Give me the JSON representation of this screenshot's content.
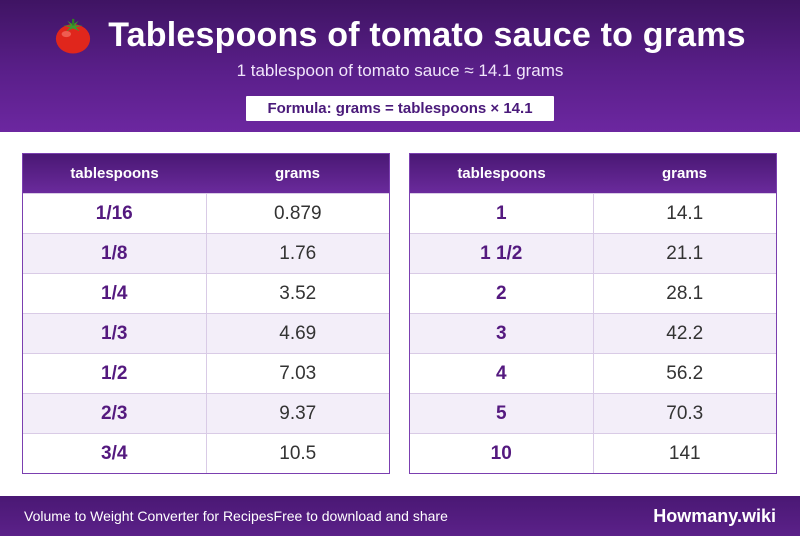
{
  "header": {
    "icon": "tomato-icon",
    "title": "Tablespoons of tomato sauce to grams",
    "subtitle": "1 tablespoon of tomato sauce ≈ 14.1 grams",
    "formula": "Formula: grams = tablespoons × 14.1"
  },
  "tables": [
    {
      "headers": [
        "tablespoons",
        "grams"
      ],
      "rows": [
        [
          "1/16",
          "0.879"
        ],
        [
          "1/8",
          "1.76"
        ],
        [
          "1/4",
          "3.52"
        ],
        [
          "1/3",
          "4.69"
        ],
        [
          "1/2",
          "7.03"
        ],
        [
          "2/3",
          "9.37"
        ],
        [
          "3/4",
          "10.5"
        ]
      ]
    },
    {
      "headers": [
        "tablespoons",
        "grams"
      ],
      "rows": [
        [
          "1",
          "14.1"
        ],
        [
          "1 1/2",
          "21.1"
        ],
        [
          "2",
          "28.1"
        ],
        [
          "3",
          "42.2"
        ],
        [
          "4",
          "56.2"
        ],
        [
          "5",
          "70.3"
        ],
        [
          "10",
          "141"
        ]
      ]
    }
  ],
  "footer": {
    "left_text_1": "Volume to Weight Converter for Recipes",
    "left_text_2": "Free to download and share",
    "brand": "Howmany.wiki"
  },
  "colors": {
    "header_bg": "#5a1f8a",
    "accent_text": "#54197f",
    "row_alt": "#f3eef9"
  }
}
